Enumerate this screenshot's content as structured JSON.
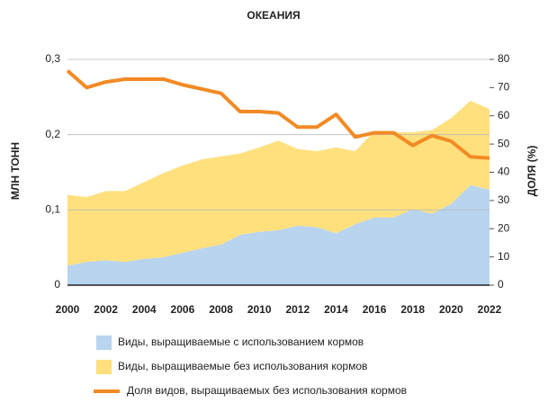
{
  "chart_data": {
    "type": "stacked_area_line",
    "title": "ОКЕАНИЯ",
    "y_label": "МЛН ТОНН",
    "y2_label": "ДОЛЯ (%)",
    "x": [
      2000,
      2001,
      2002,
      2003,
      2004,
      2005,
      2006,
      2007,
      2008,
      2009,
      2010,
      2011,
      2012,
      2013,
      2014,
      2015,
      2016,
      2017,
      2018,
      2019,
      2020,
      2021,
      2022
    ],
    "xlim": [
      2000,
      2022
    ],
    "xticks": [
      2000,
      2002,
      2004,
      2006,
      2008,
      2010,
      2012,
      2014,
      2016,
      2018,
      2020,
      2022
    ],
    "ylim": [
      0,
      0.3
    ],
    "yticks": [
      0,
      {
        "value": 0.1,
        "label": "0,1"
      },
      {
        "value": 0.2,
        "label": "0,2"
      },
      {
        "value": 0.3,
        "label": "0,3"
      }
    ],
    "y2lim": [
      0,
      80
    ],
    "y2ticks": [
      0,
      10,
      20,
      30,
      40,
      50,
      60,
      70,
      80
    ],
    "grid": true,
    "series": [
      {
        "name": "Виды, выращиваемые с использованием кормов",
        "color": "#b8d4ee",
        "kind": "area",
        "values": [
          0.026,
          0.031,
          0.033,
          0.031,
          0.035,
          0.037,
          0.043,
          0.049,
          0.054,
          0.067,
          0.071,
          0.073,
          0.079,
          0.077,
          0.069,
          0.081,
          0.09,
          0.09,
          0.101,
          0.095,
          0.108,
          0.133,
          0.127
        ]
      },
      {
        "name": "Виды, выращиваемые без использования кормов",
        "color": "#ffe07d",
        "kind": "area",
        "values": [
          0.094,
          0.086,
          0.092,
          0.094,
          0.102,
          0.112,
          0.116,
          0.118,
          0.117,
          0.108,
          0.112,
          0.119,
          0.102,
          0.101,
          0.114,
          0.097,
          0.115,
          0.113,
          0.102,
          0.111,
          0.114,
          0.112,
          0.107
        ]
      },
      {
        "name": "Доля видов, выращиваемых без использования кормов",
        "color": "#f28a24",
        "kind": "line",
        "axis": "y2",
        "values": [
          76,
          70,
          72,
          73,
          73,
          73,
          71,
          69.5,
          68,
          61.5,
          61.5,
          61,
          56,
          56,
          60.5,
          52.5,
          54,
          54,
          49.5,
          53,
          51,
          45.5,
          45
        ]
      }
    ]
  }
}
